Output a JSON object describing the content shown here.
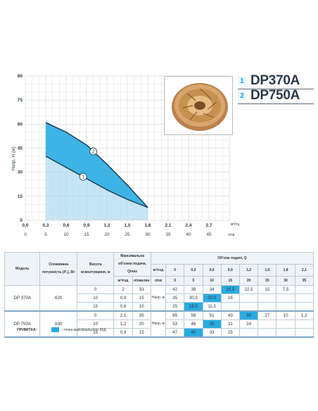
{
  "chart_data": {
    "type": "area",
    "ylabel": "Напр, Н (м)",
    "xlabel": "Об'єм подачі, Q",
    "y_ticks": [
      "0",
      "15",
      "30",
      "45",
      "60",
      "75",
      "90"
    ],
    "x_ticks_m3": [
      "0,0",
      "0,3",
      "0,6",
      "0,9",
      "1,2",
      "1,5",
      "1,8",
      "2,1",
      "2,4",
      "2,7"
    ],
    "x_unit_m3": "м³/год",
    "x_ticks_lmin": [
      "0",
      "5",
      "10",
      "15",
      "20",
      "25",
      "30",
      "35",
      "40",
      "45"
    ],
    "x_unit_lmin": "л/хв",
    "xlim_m3": [
      0,
      3.0
    ],
    "ylim": [
      0,
      90
    ],
    "grid": true,
    "series": [
      {
        "name": "1",
        "color": "#1aa4e0",
        "x": [
          0.3,
          0.6,
          0.9,
          1.2,
          1.5,
          1.8
        ],
        "y": [
          40,
          33,
          26,
          19,
          13,
          8
        ]
      },
      {
        "name": "2",
        "color": "#1aa4e0",
        "x": [
          0.3,
          0.6,
          0.9,
          1.2,
          1.5,
          1.8
        ],
        "y": [
          61,
          55,
          47,
          35,
          22,
          8
        ]
      }
    ]
  },
  "models": [
    {
      "num": "1",
      "name": "DP370A"
    },
    {
      "num": "2",
      "name": "DP750A"
    }
  ],
  "table": {
    "h_model": "Модель",
    "h_power": "Споживана потужність (P₁), Вт",
    "h_height": "Висота всмоктування, м",
    "h_maxflow": "Максимальна об'ємна подача, Qmax",
    "h_flow": "Об'єма подачі, Q",
    "u_m3": "м³/год",
    "u_lmin": "л/хвилин",
    "u_m3b": "м³/год",
    "u_lmin_b": "л/хв",
    "u_head": "Напр. м",
    "q_m3": [
      "0",
      "0,3",
      "0,6",
      "0,9",
      "1,2",
      "1,5",
      "1,8",
      "2,1"
    ],
    "q_lmin": [
      "0",
      "5",
      "10",
      "15",
      "20",
      "25",
      "30",
      "35"
    ],
    "rows": [
      {
        "model": "DP 370A",
        "power": "620",
        "h": "0",
        "m3": "2",
        "lmin": "33",
        "vals": [
          "42",
          "39",
          "34",
          "29,5",
          "22,5",
          "15",
          "7,5",
          ""
        ],
        "hl": 3
      },
      {
        "model": "",
        "power": "",
        "h": "10",
        "m3": "0,9",
        "lmin": "15",
        "vals": [
          "35",
          "30,5",
          "23,5",
          "16",
          "",
          "",
          "",
          ""
        ],
        "hl": 2
      },
      {
        "model": "",
        "power": "",
        "h": "15",
        "m3": "0,6",
        "lmin": "10",
        "vals": [
          "25",
          "18,5",
          "11,5",
          "",
          "",
          "",
          "",
          ""
        ],
        "hl": 1
      },
      {
        "model": "DP 750A",
        "power": "830",
        "h": "0",
        "m3": "2,1",
        "lmin": "35",
        "vals": [
          "65",
          "58",
          "51",
          "43",
          "35",
          "27",
          "10",
          "1,2"
        ],
        "hl": 4
      },
      {
        "model": "",
        "power": "",
        "h": "10",
        "m3": "1,2",
        "lmin": "20",
        "vals": [
          "53",
          "46",
          "38",
          "31",
          "24",
          "",
          "",
          ""
        ],
        "hl": 2
      },
      {
        "model": "",
        "power": "",
        "h": "15",
        "m3": "0,9",
        "lmin": "15",
        "vals": [
          "47",
          "40",
          "33",
          "25",
          "",
          "",
          "",
          ""
        ],
        "hl": 1
      }
    ]
  },
  "note": {
    "label": "ПРИМІТКА:",
    "text": "- точка максимального ККД"
  }
}
